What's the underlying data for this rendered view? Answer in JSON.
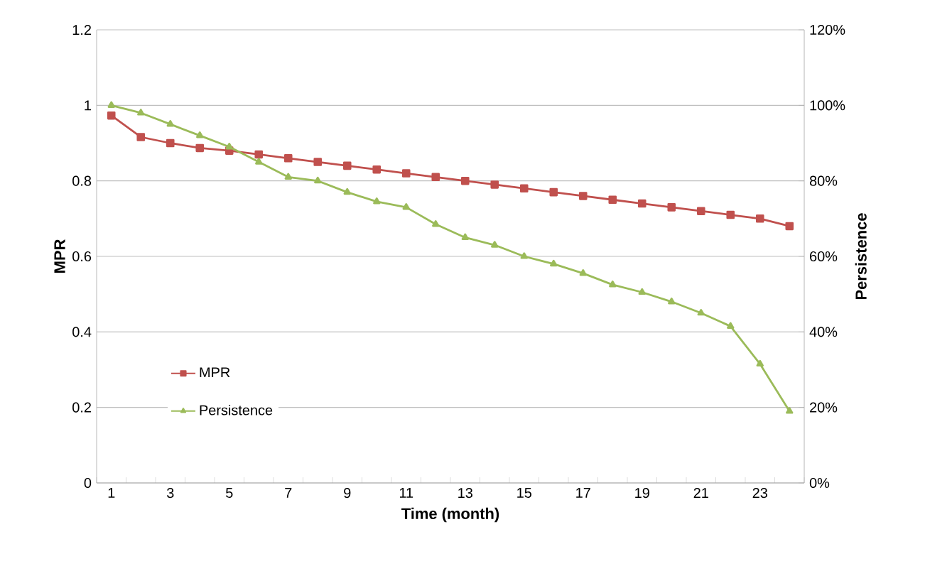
{
  "chart_data": {
    "type": "line",
    "xlabel": "Time (month)",
    "ylabel": "MPR",
    "y2label": "Persistence",
    "categories": [
      "1",
      null,
      "3",
      null,
      "5",
      null,
      "7",
      null,
      "9",
      null,
      "11",
      null,
      "13",
      null,
      "15",
      null,
      "17",
      null,
      "19",
      null,
      "21",
      null,
      "23",
      null
    ],
    "series": [
      {
        "name": "MPR",
        "color": "#c0504d",
        "marker": "square",
        "values": [
          0.973,
          0.916,
          0.9,
          0.887,
          0.88,
          0.87,
          0.86,
          0.85,
          0.84,
          0.83,
          0.82,
          0.81,
          0.8,
          0.79,
          0.78,
          0.77,
          0.76,
          0.75,
          0.74,
          0.73,
          0.72,
          0.71,
          0.7,
          0.68
        ]
      },
      {
        "name": "Persistence",
        "color": "#9bbb59",
        "marker": "triangle",
        "axis": "y2",
        "values": [
          100,
          98,
          95,
          92,
          89,
          85,
          81,
          80,
          77,
          74.5,
          73,
          68.5,
          65,
          63,
          60,
          58,
          55.5,
          52.5,
          50.5,
          48,
          45,
          41.5,
          31.5,
          19
        ]
      }
    ],
    "ylim": [
      0,
      1.2
    ],
    "yticks": [
      0,
      0.2,
      0.4,
      0.6,
      0.8,
      1,
      1.2
    ],
    "y2lim": [
      0,
      120
    ],
    "y2ticks": [
      {
        "value": 0,
        "label": "0%"
      },
      {
        "value": 20,
        "label": "20%"
      },
      {
        "value": 40,
        "label": "40%"
      },
      {
        "value": 60,
        "label": "60%"
      },
      {
        "value": 80,
        "label": "80%"
      },
      {
        "value": 100,
        "label": "100%"
      },
      {
        "value": 120,
        "label": "120%"
      }
    ],
    "grid": "y",
    "legend": "left"
  }
}
